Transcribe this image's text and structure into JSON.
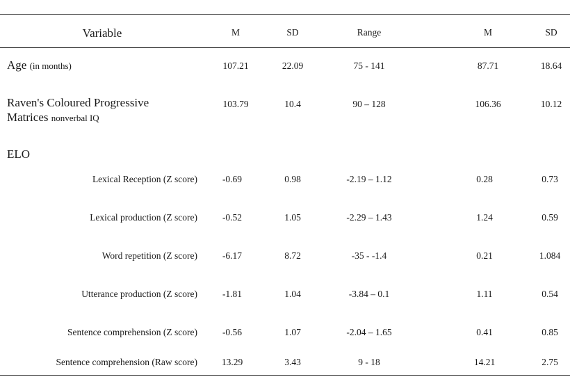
{
  "header": {
    "variable": "Variable",
    "m1": "M",
    "sd1": "SD",
    "range": "Range",
    "m2": "M",
    "sd2": "SD"
  },
  "rows": {
    "age": {
      "label": "Age",
      "note": "(in months)",
      "m1": "107.21",
      "sd1": "22.09",
      "range": "75 - 141",
      "m2": "87.71",
      "sd2": "18.64"
    },
    "raven": {
      "label_line1": "Raven's Coloured Progressive",
      "label_line2": "Matrices",
      "note": "nonverbal IQ",
      "m1": "103.79",
      "sd1": "10.4",
      "range": "90 – 128",
      "m2": "106.36",
      "sd2": "10.12"
    },
    "elo": {
      "label": "ELO"
    },
    "lexical_reception": {
      "label": "Lexical Reception (Z score)",
      "m1": "-0.69",
      "sd1": "0.98",
      "range": "-2.19 – 1.12",
      "m2": "0.28",
      "sd2": "0.73"
    },
    "lexical_production": {
      "label": "Lexical production (Z score)",
      "m1": "-0.52",
      "sd1": "1.05",
      "range": "-2.29 – 1.43",
      "m2": "1.24",
      "sd2": "0.59"
    },
    "word_repetition": {
      "label": "Word repetition (Z score)",
      "m1": "-6.17",
      "sd1": "8.72",
      "range": "-35 - -1.4",
      "m2": "0.21",
      "sd2": "1.084"
    },
    "utterance_production": {
      "label": "Utterance production (Z score)",
      "m1": "-1.81",
      "sd1": "1.04",
      "range": "-3.84 – 0.1",
      "m2": "1.11",
      "sd2": "0.54"
    },
    "sentence_comp_z": {
      "label": "Sentence comprehension (Z score)",
      "m1": "-0.56",
      "sd1": "1.07",
      "range": "-2.04 – 1.65",
      "m2": "0.41",
      "sd2": "0.85"
    },
    "sentence_comp_raw": {
      "label": "Sentence comprehension (Raw score)",
      "m1": "13.29",
      "sd1": "3.43",
      "range": "9 - 18",
      "m2": "14.21",
      "sd2": "2.75"
    }
  }
}
